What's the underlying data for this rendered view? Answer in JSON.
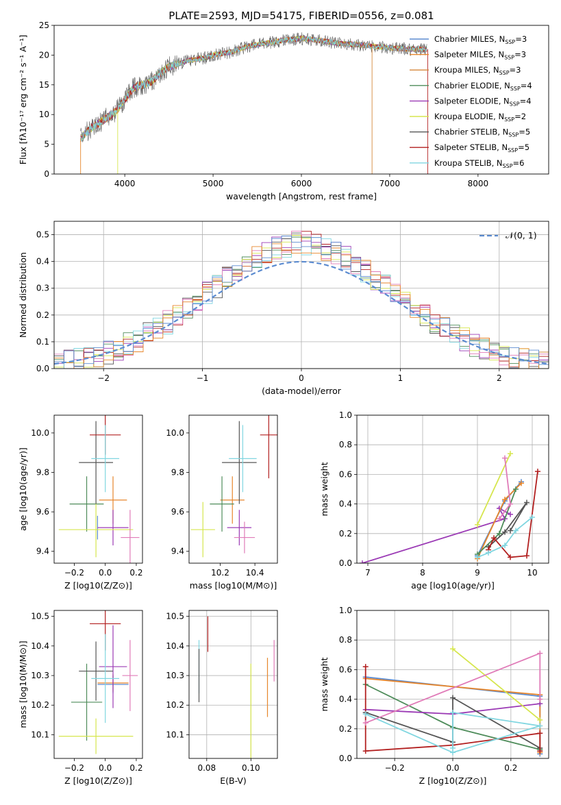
{
  "page_title": "PLATE=2593, MJD=54175, FIBERID=0556, z=0.081",
  "colors": {
    "chabrier_miles": "#5b8bd0",
    "salpeter_miles": "#e7862b",
    "kroupa_miles": "#d4863a",
    "chabrier_elodie": "#4e8c5a",
    "salpeter_elodie": "#9b3ab5",
    "kroupa_elodie": "#d6e64e",
    "chabrier_stelib": "#555555",
    "salpeter_stelib": "#b21f1f",
    "kroupa_stelib": "#80d6e0",
    "pink": "#e07bb8",
    "grid": "#b0b0b0"
  },
  "chart_data": [
    {
      "id": "spectrum",
      "type": "line",
      "title": "PLATE=2593, MJD=54175, FIBERID=0556, z=0.081",
      "xlabel": "wavelength [Angstrom, rest frame]",
      "ylabel": "Flux [fλ10⁻¹⁷ erg cm⁻² s⁻¹ A⁻¹]",
      "xlim": [
        3200,
        8800
      ],
      "ylim": [
        0,
        25
      ],
      "xticks": [
        "4000",
        "5000",
        "6000",
        "7000",
        "8000"
      ],
      "yticks": [
        "0",
        "5",
        "10",
        "15",
        "20",
        "25"
      ],
      "grid": false,
      "legend_position": "upper-right",
      "legend": [
        {
          "label": "Chabrier MILES, N",
          "sub": "SSP",
          "eq": "=3",
          "color": "#5b8bd0"
        },
        {
          "label": "Salpeter MILES, N",
          "sub": "SSP",
          "eq": "=3",
          "color": "#e7862b"
        },
        {
          "label": "Kroupa MILES, N",
          "sub": "SSP",
          "eq": "=3",
          "color": "#d4863a"
        },
        {
          "label": "Chabrier ELODIE, N",
          "sub": "SSP",
          "eq": "=4",
          "color": "#4e8c5a"
        },
        {
          "label": "Salpeter ELODIE, N",
          "sub": "SSP",
          "eq": "=4",
          "color": "#9b3ab5"
        },
        {
          "label": "Kroupa ELODIE, N",
          "sub": "SSP",
          "eq": "=2",
          "color": "#d6e64e"
        },
        {
          "label": "Chabrier STELIB, N",
          "sub": "SSP",
          "eq": "=5",
          "color": "#555555"
        },
        {
          "label": "Salpeter STELIB, N",
          "sub": "SSP",
          "eq": "=5",
          "color": "#b21f1f"
        },
        {
          "label": "Kroupa STELIB, N",
          "sub": "SSP",
          "eq": "=6",
          "color": "#80d6e0"
        }
      ],
      "continuum": {
        "x": [
          3500,
          3600,
          3700,
          3800,
          3900,
          4000,
          4100,
          4200,
          4300,
          4400,
          4500,
          4600,
          4700,
          4800,
          4900,
          5000,
          5200,
          5400,
          5600,
          5800,
          6000,
          6200,
          6400,
          6600,
          6800,
          7000,
          7200,
          7400
        ],
        "y": [
          6.0,
          7.5,
          8.5,
          9.5,
          10.5,
          12.5,
          14.5,
          15.0,
          15.5,
          17.0,
          18.0,
          18.5,
          19.0,
          19.3,
          19.5,
          20.0,
          20.5,
          21.5,
          22.0,
          22.5,
          22.8,
          22.5,
          22.0,
          21.8,
          21.5,
          21.2,
          21.0,
          21.0
        ]
      }
    },
    {
      "id": "residuals",
      "type": "bar",
      "xlabel": "(data-model)/error",
      "ylabel": "Normed distribution",
      "xlim": [
        -2.5,
        2.5
      ],
      "ylim": [
        0,
        0.55
      ],
      "xticks": [
        "−2",
        "−1",
        "0",
        "1",
        "2"
      ],
      "yticks": [
        "0.0",
        "0.1",
        "0.2",
        "0.3",
        "0.4",
        "0.5"
      ],
      "grid": true,
      "legend_position": "upper-right",
      "legend_label": "𝒩(0, 1)",
      "gaussian": {
        "mean": 0,
        "sigma": 1
      }
    },
    {
      "id": "age_vs_Z",
      "type": "scatter",
      "xlabel": "Z [log10(Z/Z⊙)]",
      "ylabel": "age  [log10(age/yr)]",
      "xlim": [
        -0.33,
        0.24
      ],
      "ylim": [
        9.34,
        10.09
      ],
      "xticks": [
        "−0.2",
        "0.0",
        "0.2"
      ],
      "yticks": [
        "9.4",
        "9.6",
        "9.8",
        "10.0"
      ],
      "points": [
        {
          "x": -0.05,
          "y": 9.52,
          "xerr": 0.0,
          "yerr": 0.06,
          "color": "#5b8bd0"
        },
        {
          "x": 0.05,
          "y": 9.66,
          "xerr": 0.09,
          "yerr": 0.12,
          "color": "#e7862b"
        },
        {
          "x": -0.12,
          "y": 9.64,
          "xerr": 0.11,
          "yerr": 0.14,
          "color": "#4e8c5a"
        },
        {
          "x": 0.05,
          "y": 9.52,
          "xerr": 0.1,
          "yerr": 0.09,
          "color": "#9b3ab5"
        },
        {
          "x": -0.06,
          "y": 9.51,
          "xerr": 0.24,
          "yerr": 0.14,
          "color": "#d6e64e"
        },
        {
          "x": -0.06,
          "y": 9.85,
          "xerr": 0.11,
          "yerr": 0.21,
          "color": "#555555"
        },
        {
          "x": 0.0,
          "y": 9.99,
          "xerr": 0.1,
          "yerr": 0.1,
          "color": "#b21f1f"
        },
        {
          "x": 0.0,
          "y": 9.87,
          "xerr": 0.09,
          "yerr": 0.17,
          "color": "#80d6e0"
        },
        {
          "x": 0.16,
          "y": 9.47,
          "xerr": 0.06,
          "yerr": 0.14,
          "color": "#e07bb8"
        }
      ]
    },
    {
      "id": "age_vs_mass",
      "type": "scatter",
      "xlabel": "mass [log10(M/M⊙)]",
      "ylabel": "",
      "xlim": [
        10.02,
        10.53
      ],
      "ylim": [
        9.34,
        10.09
      ],
      "xticks": [
        "10.2",
        "10.4"
      ],
      "yticks": [
        "9.4",
        "9.6",
        "9.8",
        "10.0"
      ],
      "points": [
        {
          "x": 10.27,
          "y": 9.66,
          "xerr": 0.07,
          "yerr": 0.12,
          "color": "#e7862b"
        },
        {
          "x": 10.21,
          "y": 9.64,
          "xerr": 0.07,
          "yerr": 0.14,
          "color": "#4e8c5a"
        },
        {
          "x": 10.31,
          "y": 9.52,
          "xerr": 0.07,
          "yerr": 0.09,
          "color": "#9b3ab5"
        },
        {
          "x": 10.1,
          "y": 9.51,
          "xerr": 0.07,
          "yerr": 0.14,
          "color": "#d6e64e"
        },
        {
          "x": 10.31,
          "y": 9.85,
          "xerr": 0.1,
          "yerr": 0.21,
          "color": "#555555"
        },
        {
          "x": 10.48,
          "y": 9.99,
          "xerr": 0.05,
          "yerr": 0.22,
          "color": "#b21f1f"
        },
        {
          "x": 10.33,
          "y": 9.87,
          "xerr": 0.08,
          "yerr": 0.17,
          "color": "#80d6e0"
        },
        {
          "x": 10.34,
          "y": 9.47,
          "xerr": 0.06,
          "yerr": 0.08,
          "color": "#e07bb8"
        }
      ]
    },
    {
      "id": "massweight_vs_age",
      "type": "line",
      "xlabel": "age  [log10(age/yr)]",
      "ylabel": "mass weight",
      "xlim": [
        6.8,
        10.3
      ],
      "ylim": [
        0,
        1
      ],
      "xticks": [
        "7",
        "8",
        "9",
        "10"
      ],
      "yticks": [
        "0.0",
        "0.2",
        "0.4",
        "0.6",
        "0.8",
        "1.0"
      ],
      "grid": true,
      "series": [
        {
          "color": "#9b3ab5",
          "x": [
            6.9,
            9.5,
            9.4,
            9.6
          ],
          "y": [
            0.0,
            0.3,
            0.37,
            0.33
          ]
        },
        {
          "color": "#5b8bd0",
          "x": [
            9.0,
            9.5,
            9.8
          ],
          "y": [
            0.05,
            0.42,
            0.55
          ]
        },
        {
          "color": "#e7862b",
          "x": [
            9.0,
            9.5,
            9.8
          ],
          "y": [
            0.03,
            0.43,
            0.54
          ]
        },
        {
          "color": "#4e8c5a",
          "x": [
            9.0,
            9.4,
            9.7
          ],
          "y": [
            0.06,
            0.2,
            0.5
          ]
        },
        {
          "color": "#d6e64e",
          "x": [
            9.0,
            9.6
          ],
          "y": [
            0.26,
            0.74
          ]
        },
        {
          "color": "#555555",
          "x": [
            9.2,
            9.5,
            9.9,
            9.6
          ],
          "y": [
            0.11,
            0.21,
            0.41,
            0.22
          ]
        },
        {
          "color": "#b21f1f",
          "x": [
            9.2,
            9.3,
            9.6,
            9.9,
            10.1
          ],
          "y": [
            0.09,
            0.17,
            0.04,
            0.05,
            0.62
          ]
        },
        {
          "color": "#80d6e0",
          "x": [
            9.0,
            9.2,
            9.5,
            9.7,
            10.0
          ],
          "y": [
            0.04,
            0.07,
            0.12,
            0.22,
            0.31
          ]
        },
        {
          "color": "#e07bb8",
          "x": [
            9.5,
            9.6,
            9.4
          ],
          "y": [
            0.71,
            0.4,
            0.3
          ]
        }
      ]
    },
    {
      "id": "mass_vs_Z",
      "type": "scatter",
      "xlabel": "Z [log10(Z/Z⊙)]",
      "ylabel": "mass [log10(M/M⊙)]",
      "xlim": [
        -0.33,
        0.24
      ],
      "ylim": [
        10.02,
        10.52
      ],
      "xticks": [
        "−0.2",
        "0.0",
        "0.2"
      ],
      "yticks": [
        "10.1",
        "10.2",
        "10.3",
        "10.4",
        "10.5"
      ],
      "points": [
        {
          "x": 0.05,
          "y": 10.27,
          "xerr": 0.1,
          "yerr": 0.03,
          "color": "#5b8bd0"
        },
        {
          "x": 0.05,
          "y": 10.275,
          "xerr": 0.1,
          "yerr": 0.03,
          "color": "#e7862b"
        },
        {
          "x": -0.12,
          "y": 10.21,
          "xerr": 0.1,
          "yerr": 0.13,
          "color": "#4e8c5a"
        },
        {
          "x": 0.05,
          "y": 10.33,
          "xerr": 0.09,
          "yerr": 0.14,
          "color": "#9b3ab5"
        },
        {
          "x": -0.06,
          "y": 10.095,
          "xerr": 0.24,
          "yerr": 0.06,
          "color": "#d6e64e"
        },
        {
          "x": -0.06,
          "y": 10.315,
          "xerr": 0.11,
          "yerr": 0.1,
          "color": "#555555"
        },
        {
          "x": 0.0,
          "y": 10.475,
          "xerr": 0.1,
          "yerr": 0.09,
          "color": "#b21f1f"
        },
        {
          "x": 0.0,
          "y": 10.29,
          "xerr": 0.09,
          "yerr": 0.15,
          "color": "#80d6e0"
        },
        {
          "x": 0.16,
          "y": 10.3,
          "xerr": 0.05,
          "yerr": 0.12,
          "color": "#e07bb8"
        }
      ]
    },
    {
      "id": "mass_vs_ebv",
      "type": "scatter",
      "xlabel": "E(B-V)",
      "ylabel": "",
      "xlim": [
        0.072,
        0.112
      ],
      "ylim": [
        10.02,
        10.52
      ],
      "xticks": [
        "0.08",
        "0.10"
      ],
      "yticks": [
        "10.1",
        "10.2",
        "10.3",
        "10.4",
        "10.5"
      ],
      "grid": true,
      "points": [
        {
          "x": 0.0765,
          "y": 10.33,
          "xerr": 0,
          "yerr": 0.09,
          "color": "#80d6e0"
        },
        {
          "x": 0.0765,
          "y": 10.3,
          "xerr": 0,
          "yerr": 0.09,
          "color": "#555555"
        },
        {
          "x": 0.0805,
          "y": 10.44,
          "xerr": 0,
          "yerr": 0.06,
          "color": "#b21f1f"
        },
        {
          "x": 0.1,
          "y": 10.18,
          "xerr": 0,
          "yerr": 0.16,
          "color": "#d6e64e"
        },
        {
          "x": 0.1075,
          "y": 10.26,
          "xerr": 0,
          "yerr": 0.1,
          "color": "#e7862b"
        },
        {
          "x": 0.1105,
          "y": 10.35,
          "xerr": 0,
          "yerr": 0.07,
          "color": "#e07bb8"
        }
      ]
    },
    {
      "id": "massweight_vs_Z",
      "type": "line",
      "xlabel": "Z [log10(Z/Z⊙)]",
      "ylabel": "mass weight",
      "xlim": [
        -0.33,
        0.33
      ],
      "ylim": [
        0,
        1
      ],
      "xticks": [
        "−0.2",
        "0.0",
        "0.2"
      ],
      "yticks": [
        "0.0",
        "0.2",
        "0.4",
        "0.6",
        "0.8",
        "1.0"
      ],
      "grid": true,
      "series": [
        {
          "color": "#5b8bd0",
          "x": [
            -0.3,
            0.3,
            0.3
          ],
          "y": [
            0.55,
            0.42,
            0.03
          ]
        },
        {
          "color": "#e7862b",
          "x": [
            -0.3,
            0.3,
            0.3
          ],
          "y": [
            0.54,
            0.43,
            0.04
          ]
        },
        {
          "color": "#4e8c5a",
          "x": [
            -0.3,
            0.0,
            0.3
          ],
          "y": [
            0.5,
            0.21,
            0.06
          ]
        },
        {
          "color": "#9b3ab5",
          "x": [
            -0.3,
            0.0,
            0.3
          ],
          "y": [
            0.33,
            0.3,
            0.37
          ]
        },
        {
          "color": "#d6e64e",
          "x": [
            0.0,
            0.3
          ],
          "y": [
            0.74,
            0.26
          ]
        },
        {
          "color": "#555555",
          "x": [
            -0.3,
            0.0,
            0.0,
            0.3
          ],
          "y": [
            0.31,
            0.11,
            0.41,
            0.07
          ]
        },
        {
          "color": "#b21f1f",
          "x": [
            -0.3,
            -0.3,
            0.0,
            0.3,
            0.3
          ],
          "y": [
            0.62,
            0.05,
            0.09,
            0.17,
            0.05
          ]
        },
        {
          "color": "#80d6e0",
          "x": [
            -0.3,
            0.0,
            0.3,
            0.0,
            0.0
          ],
          "y": [
            0.3,
            0.04,
            0.22,
            0.31,
            0.07
          ]
        },
        {
          "color": "#e07bb8",
          "x": [
            -0.3,
            0.3,
            0.3
          ],
          "y": [
            0.24,
            0.71,
            0.4
          ]
        }
      ]
    }
  ]
}
